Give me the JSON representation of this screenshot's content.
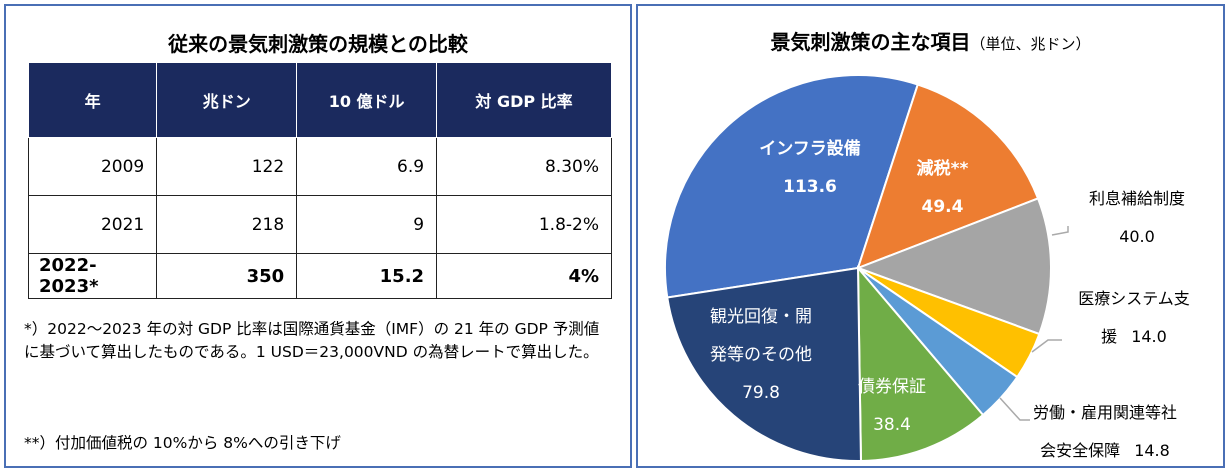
{
  "table": {
    "title": "従来の景気刺激策の規模との比較",
    "header": [
      "年",
      "兆ドン",
      "10 億ドル",
      "対 GDP 比率"
    ],
    "rows": [
      [
        "2009",
        "122",
        "6.9",
        "8.30%"
      ],
      [
        "2021",
        "218",
        "9",
        "1.8-2%"
      ],
      [
        "2022-2023*",
        "350",
        "15.2",
        "4%"
      ]
    ],
    "notes": [
      "*）2022～2023 年の対 GDP 比率は国際通貨基金（IMF）の 21 年の GDP 予測値に基づいて算出したものである。1 USD＝23,000VND の為替レートで算出した。",
      "**）付加価値税の 10%から 8%への引き下げ"
    ]
  },
  "chart_data": {
    "type": "pie",
    "title": "景気刺激策の主な項目",
    "subtitle": "（単位、兆ドン）",
    "categories": [
      "インフラ設備",
      "減税**",
      "利息補給制度",
      "医療システム支援",
      "労働・雇用関連等社会安全保障",
      "債券保証",
      "観光回復・開発等のその他"
    ],
    "values": [
      113.6,
      49.4,
      40,
      14,
      14.8,
      38.4,
      79.8
    ],
    "value_labels": [
      "113.6",
      "49.4",
      "40.0",
      "14.0",
      "14.8",
      "38.4",
      "79.8"
    ],
    "colors": [
      "#4472c4",
      "#ed7d31",
      "#a5a5a5",
      "#ffc000",
      "#5b9bd5",
      "#70ad47",
      "#264478"
    ]
  }
}
